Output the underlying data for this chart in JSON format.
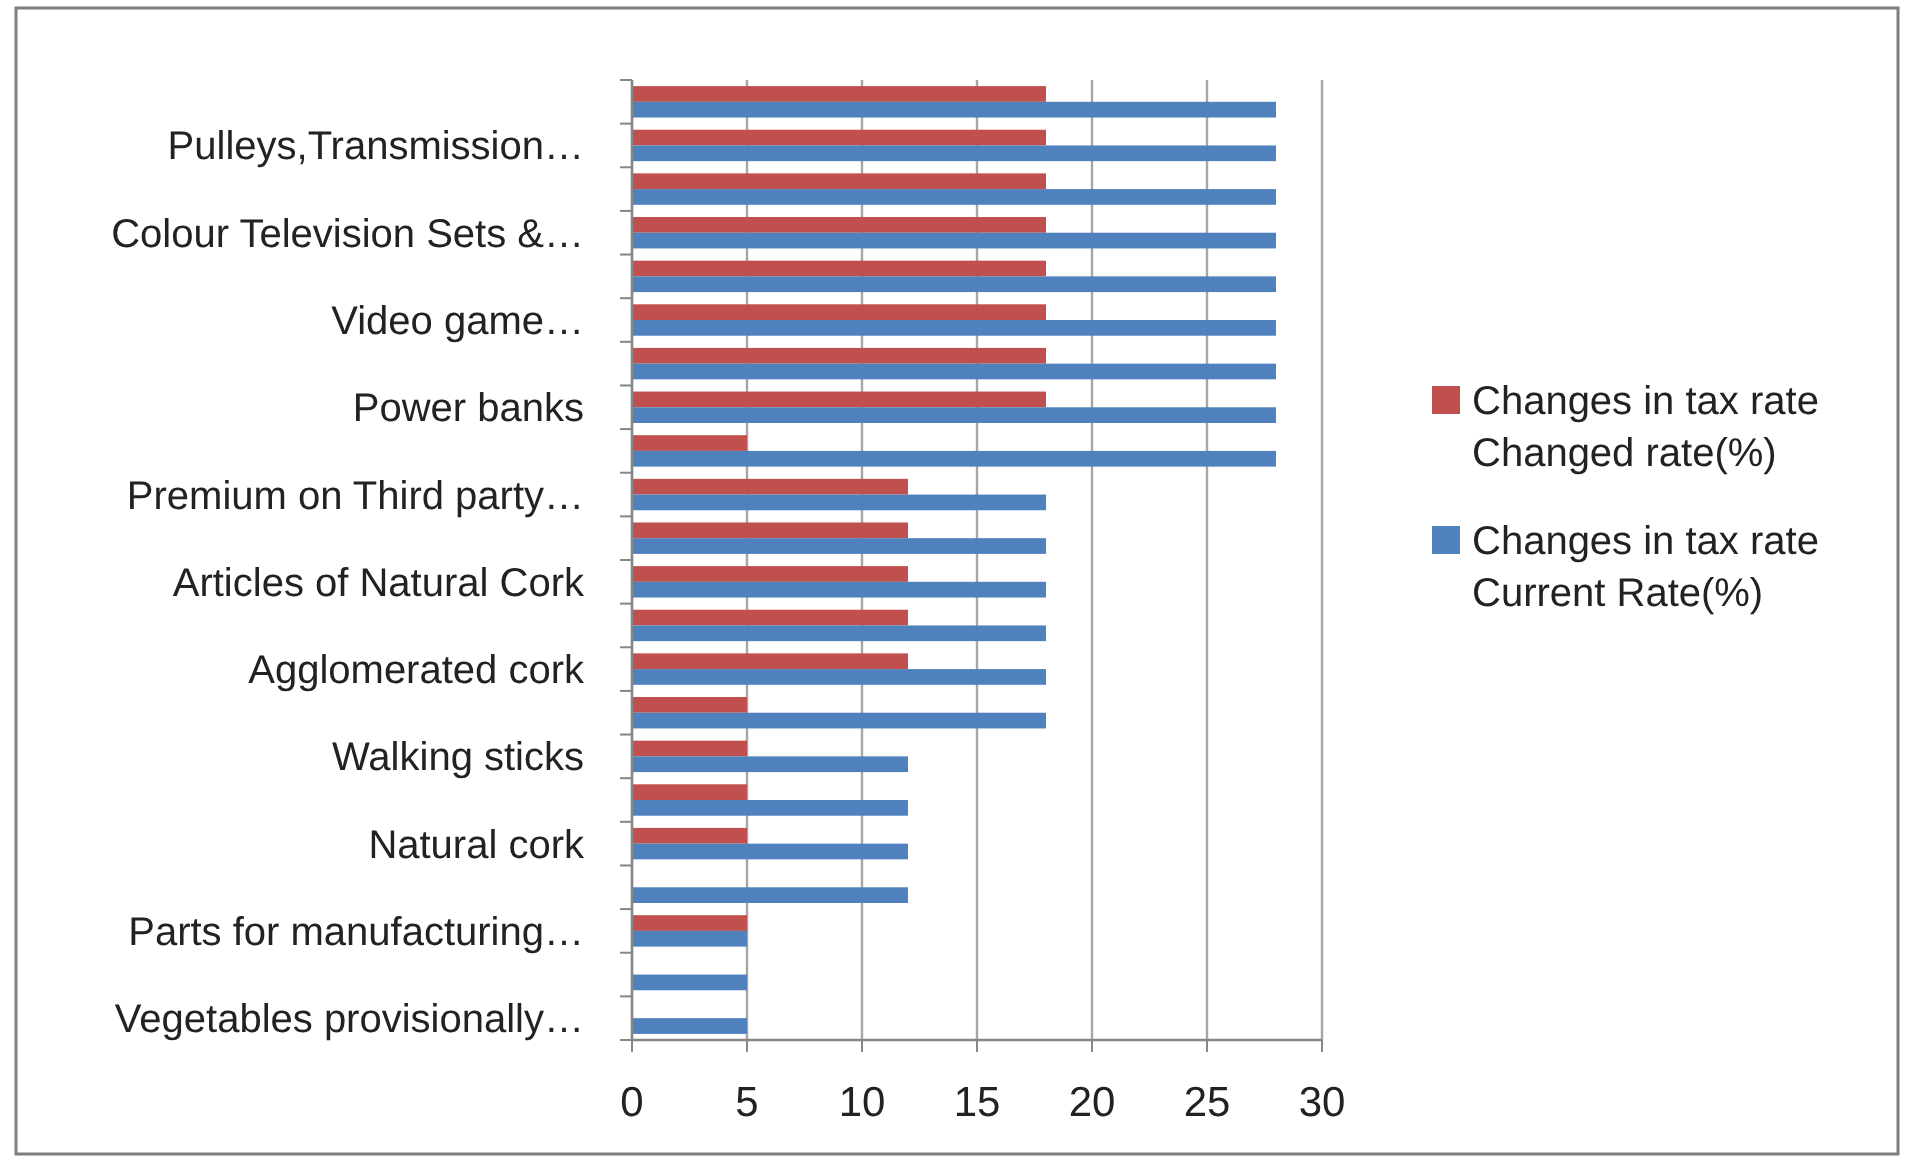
{
  "chart_data": {
    "type": "bar",
    "orientation": "horizontal",
    "categories": [
      null,
      "Pulleys,Transmission…",
      null,
      "Colour Television Sets &…",
      null,
      "Video game…",
      null,
      "Power banks",
      null,
      "Premium on Third party…",
      null,
      "Articles of Natural Cork",
      null,
      "Agglomerated cork",
      null,
      "Walking sticks",
      null,
      "Natural cork",
      null,
      "Parts for manufacturing…",
      null,
      "Vegetables provisionally…"
    ],
    "series": [
      {
        "name": "Changes in tax rate Changed rate(%)",
        "color": "#c0504d",
        "values": [
          18,
          18,
          18,
          18,
          18,
          18,
          18,
          18,
          5,
          12,
          12,
          12,
          12,
          12,
          5,
          5,
          5,
          5,
          null,
          5,
          null,
          null
        ]
      },
      {
        "name": "Changes in tax rate Current Rate(%)",
        "color": "#4f81bd",
        "values": [
          28,
          28,
          28,
          28,
          28,
          28,
          28,
          28,
          28,
          18,
          18,
          18,
          18,
          18,
          18,
          12,
          12,
          12,
          12,
          5,
          5,
          5
        ]
      }
    ],
    "xlim": [
      0,
      30
    ],
    "xticks": [
      0,
      5,
      10,
      15,
      20,
      25,
      30
    ],
    "grid": "x",
    "legend": "right"
  }
}
